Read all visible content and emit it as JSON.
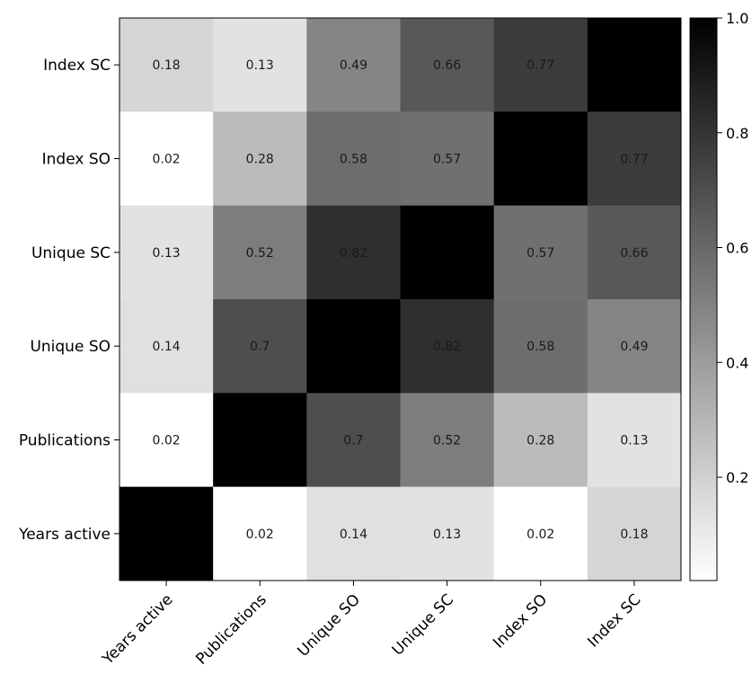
{
  "chart_data": {
    "type": "heatmap",
    "title": "",
    "xlabel": "",
    "ylabel": "",
    "x_categories": [
      "Years active",
      "Publications",
      "Unique SO",
      "Unique SC",
      "Index SO",
      "Index SC"
    ],
    "y_categories_top_to_bottom": [
      "Index SC",
      "Index SO",
      "Unique SC",
      "Unique SO",
      "Publications",
      "Years active"
    ],
    "values_top_to_bottom": [
      [
        0.18,
        0.13,
        0.49,
        0.66,
        0.77,
        1.0
      ],
      [
        0.02,
        0.28,
        0.58,
        0.57,
        1.0,
        0.77
      ],
      [
        0.13,
        0.52,
        0.82,
        1.0,
        0.57,
        0.66
      ],
      [
        0.14,
        0.7,
        1.0,
        0.82,
        0.58,
        0.49
      ],
      [
        0.02,
        1.0,
        0.7,
        0.52,
        0.28,
        0.13
      ],
      [
        1.0,
        0.02,
        0.14,
        0.13,
        0.02,
        0.18
      ]
    ],
    "cell_labels_top_to_bottom": [
      [
        "0.18",
        "0.13",
        "0.49",
        "0.66",
        "0.77",
        ""
      ],
      [
        "0.02",
        "0.28",
        "0.58",
        "0.57",
        "",
        "0.77"
      ],
      [
        "0.13",
        "0.52",
        "0.82",
        "",
        "0.57",
        "0.66"
      ],
      [
        "0.14",
        "0.7",
        "",
        "0.82",
        "0.58",
        "0.49"
      ],
      [
        "0.02",
        "",
        "0.7",
        "0.52",
        "0.28",
        "0.13"
      ],
      [
        "",
        "0.02",
        "0.14",
        "0.13",
        "0.02",
        "0.18"
      ]
    ],
    "colormap": "white-to-black (Greys)",
    "color_range": [
      0.02,
      1.0
    ],
    "colorbar_ticks": [
      {
        "value": 0.2,
        "label": "0.2"
      },
      {
        "value": 0.4,
        "label": "0.4"
      },
      {
        "value": 0.6,
        "label": "0.6"
      },
      {
        "value": 0.8,
        "label": "0.8"
      },
      {
        "value": 1.0,
        "label": "1.0"
      }
    ],
    "x_tick_rotation_deg": -45,
    "grid": false
  }
}
